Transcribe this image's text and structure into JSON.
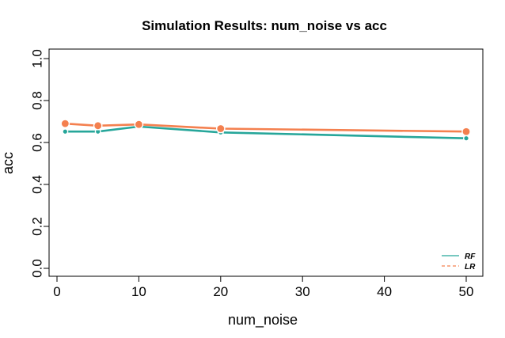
{
  "chart_data": {
    "type": "line",
    "title": "Simulation Results: num_noise vs acc",
    "xlabel": "num_noise",
    "ylabel": "acc",
    "x": [
      1,
      5,
      10,
      20,
      50
    ],
    "xlim": [
      0,
      50
    ],
    "ylim": [
      0,
      1
    ],
    "x_ticks": [
      "0",
      "10",
      "20",
      "30",
      "40",
      "50"
    ],
    "y_ticks": [
      "0.0",
      "0.2",
      "0.4",
      "0.6",
      "0.8",
      "1.0"
    ],
    "grid": false,
    "legend_position": "bottom-right",
    "series": [
      {
        "name": "RF",
        "values": [
          0.652,
          0.652,
          0.676,
          0.648,
          0.62
        ],
        "color": "#26A69A"
      },
      {
        "name": "LR",
        "values": [
          0.69,
          0.68,
          0.686,
          0.666,
          0.652
        ],
        "color": "#F4804F"
      }
    ]
  }
}
